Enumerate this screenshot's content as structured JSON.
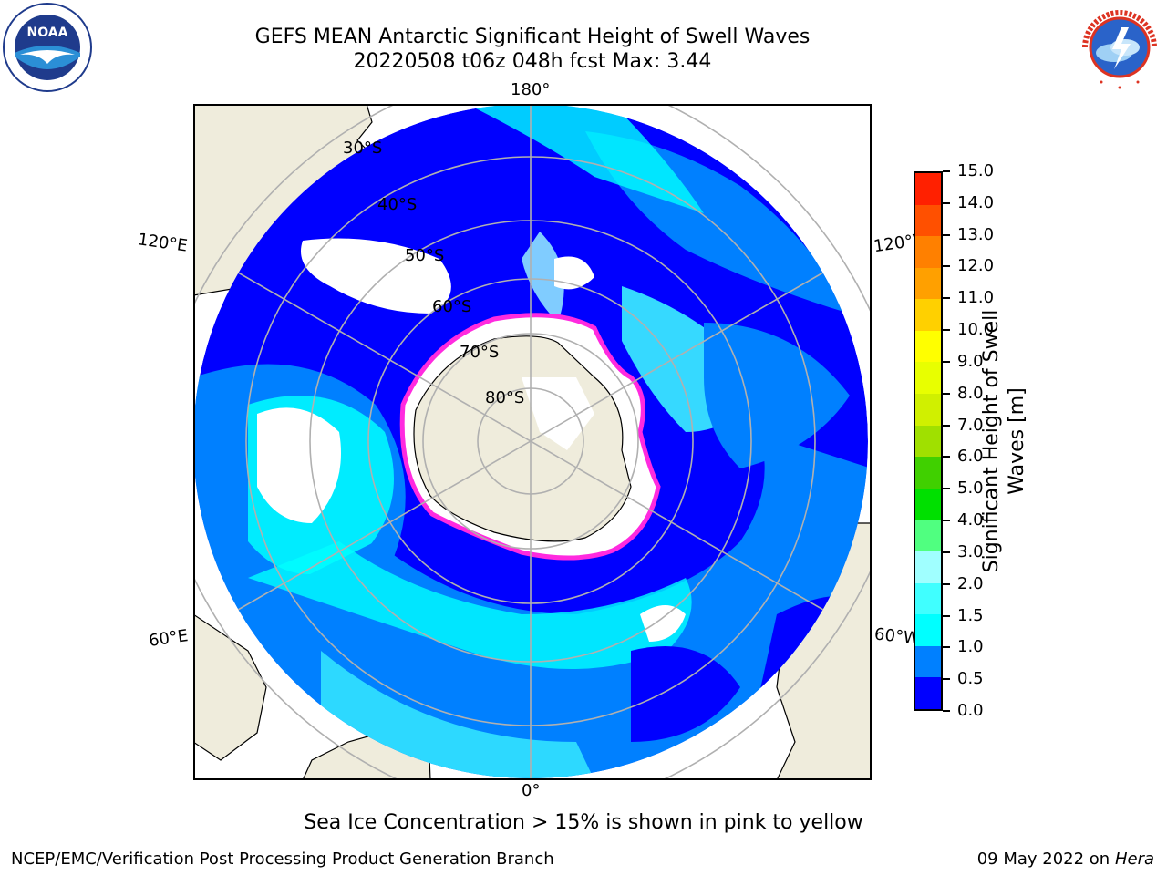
{
  "header": {
    "title_line1": "GEFS MEAN Antarctic Significant Height of Swell Waves",
    "title_line2": "20220508 t06z 048h fcst   Max: 3.44"
  },
  "logos": {
    "left": {
      "icon": "noaa-logo-icon",
      "text": "NOAA",
      "ring_text": "NATIONAL OCEANIC AND ATMOSPHERIC ADMINISTRATION · U.S. DEPARTMENT OF COMMERCE"
    },
    "right": {
      "icon": "nws-logo-icon",
      "ring_text": "NATIONAL WEATHER SERVICE"
    }
  },
  "map": {
    "projection": "south-polar-stereographic",
    "longitude_labels": [
      "180°",
      "120°E",
      "120°W",
      "60°E",
      "60°W",
      "0°"
    ],
    "latitude_labels": [
      "30°S",
      "40°S",
      "50°S",
      "60°S",
      "70°S",
      "80°S"
    ],
    "colors": {
      "land": "#efecdc",
      "ice": "#ffffff",
      "coastline": "#000000",
      "grid": "#b0b0b0",
      "ice_edge": "#ff2adf"
    }
  },
  "colorbar": {
    "label_line1": "Significant Height of Swell",
    "label_line2": "Waves [m]",
    "ticks": [
      "0.0",
      "0.5",
      "1.0",
      "1.5",
      "2.0",
      "3.0",
      "4.0",
      "5.0",
      "6.0",
      "7.0",
      "8.0",
      "9.0",
      "10.0",
      "11.0",
      "12.0",
      "13.0",
      "14.0",
      "15.0"
    ],
    "colors": [
      "#0000ff",
      "#0080ff",
      "#00ffff",
      "#40ffff",
      "#a0ffff",
      "#50ff80",
      "#00e000",
      "#40d000",
      "#a0e000",
      "#d0f000",
      "#e8ff00",
      "#ffff00",
      "#ffd000",
      "#ffa000",
      "#ff8000",
      "#ff5000",
      "#ff2000",
      "#ff0000"
    ]
  },
  "note": "Sea Ice Concentration > 15% is shown in pink to yellow",
  "footer": {
    "left": "NCEP/EMC/Verification Post Processing Product Generation Branch",
    "date": "09 May 2022 on",
    "machine": "Hera"
  }
}
